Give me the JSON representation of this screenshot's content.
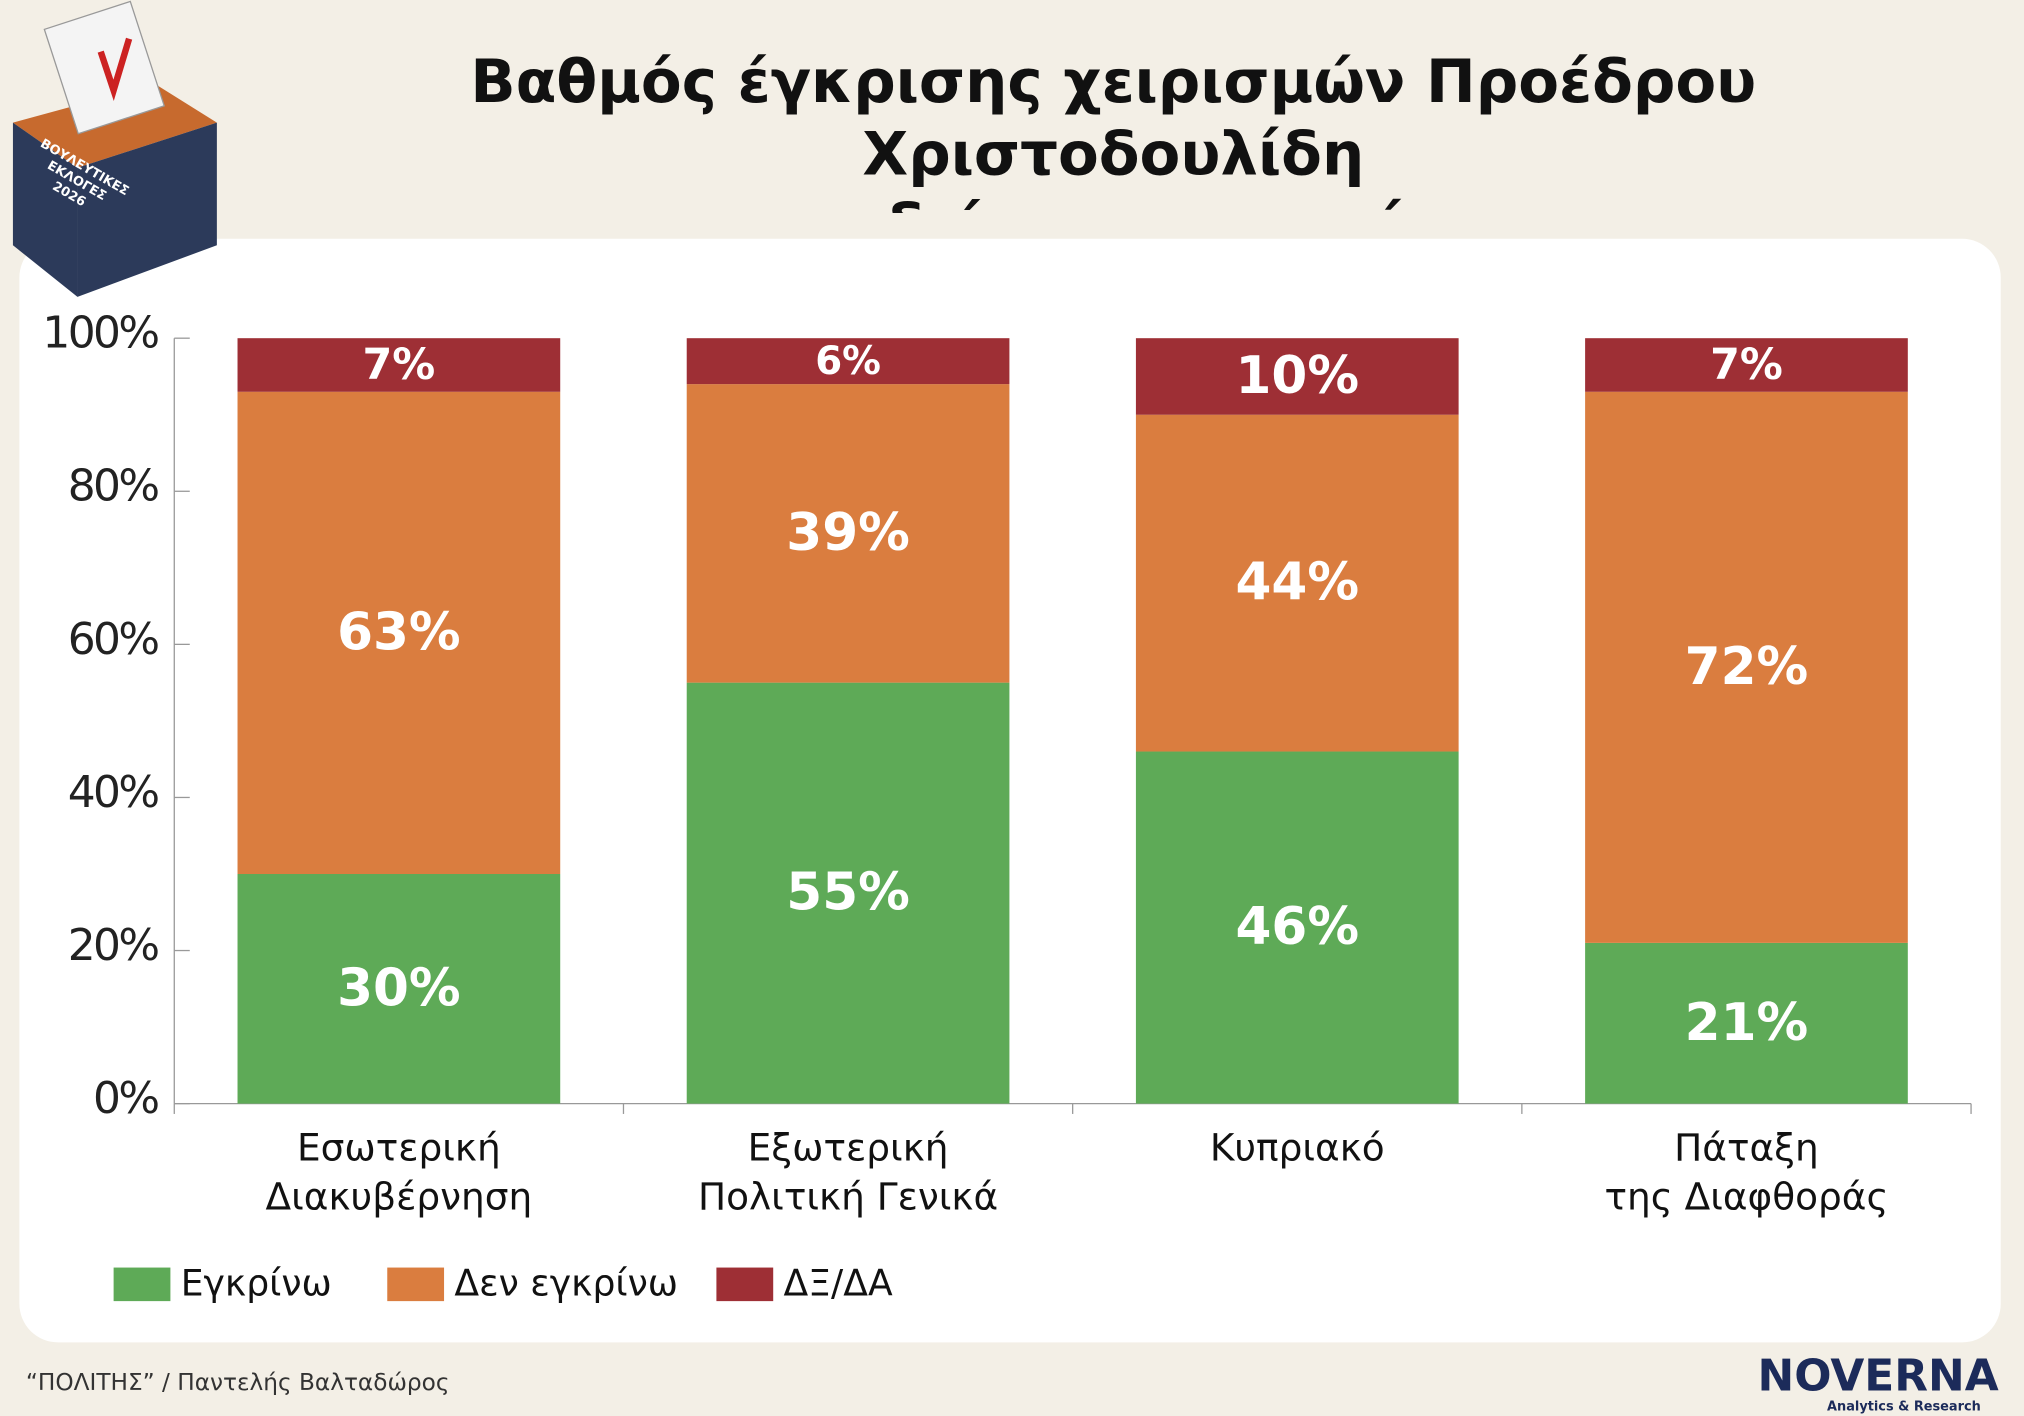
{
  "chart_data": {
    "type": "stacked_bar",
    "title": "Βαθμός έγκρισης χειρισμών Προέδρου Χριστοδουλίδη\nσε διάφορες πτυχές",
    "categories": [
      "Εσωτερική\nΔιακυβέρνηση",
      "Εξωτερική\nΠολιτική Γενικά",
      "Κυπριακό",
      "Πάταξη\nτης Διαφθοράς"
    ],
    "series": [
      {
        "name": "Εγκρίνω",
        "color": "#5eaa57",
        "values": [
          30,
          55,
          46,
          21
        ],
        "value_labels": [
          "30%",
          "55%",
          "46%",
          "21%"
        ]
      },
      {
        "name": "Δεν εγκρίνω",
        "color": "#da7d3f",
        "values": [
          63,
          39,
          44,
          72
        ],
        "value_labels": [
          "63%",
          "39%",
          "44%",
          "72%"
        ]
      },
      {
        "name": "ΔΞ/ΔΑ",
        "color": "#9e2f35",
        "values": [
          7,
          6,
          10,
          7
        ],
        "value_labels": [
          "7%",
          "6%",
          "10%",
          "7%"
        ]
      }
    ],
    "ylim": [
      0,
      100
    ],
    "yticks": [
      {
        "value": 0,
        "label": "0%"
      },
      {
        "value": 20,
        "label": "20%"
      },
      {
        "value": 40,
        "label": "40%"
      },
      {
        "value": 60,
        "label": "60%"
      },
      {
        "value": 80,
        "label": "80%"
      },
      {
        "value": 100,
        "label": "100%"
      }
    ],
    "legend": "bottom-left"
  },
  "badge": "ΒΟΥΛΕΥΤΙΚΕΣ\nΕΚΛΟΓΕΣ\n2026",
  "source": "“ΠΟΛΙΤΗΣ” / Παντελής Βαλταδώρος",
  "logo": {
    "name": "NOVERNA",
    "tagline": "Analytics & Research"
  }
}
